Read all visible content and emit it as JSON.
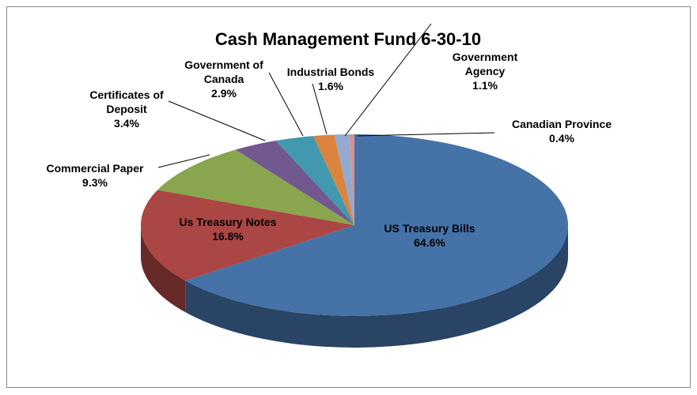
{
  "chart_data": {
    "type": "pie",
    "title": "Cash Management Fund 6-30-10",
    "categories": [
      "US Treasury Bills",
      "Us Treasury Notes",
      "Commercial Paper",
      "Certificates of Deposit",
      "Government of Canada",
      "Industrial Bonds",
      "Government Agency",
      "Canadian Province"
    ],
    "values": [
      64.6,
      16.8,
      9.3,
      3.4,
      2.9,
      1.6,
      1.1,
      0.4
    ],
    "value_labels": [
      "64.6%",
      "16.8%",
      "9.3%",
      "3.4%",
      "2.9%",
      "1.6%",
      "1.1%",
      "0.4%"
    ],
    "colors": [
      "#4572a7",
      "#aa4643",
      "#89a54e",
      "#71588f",
      "#4198af",
      "#db843d",
      "#93a9cf",
      "#d19392"
    ]
  }
}
